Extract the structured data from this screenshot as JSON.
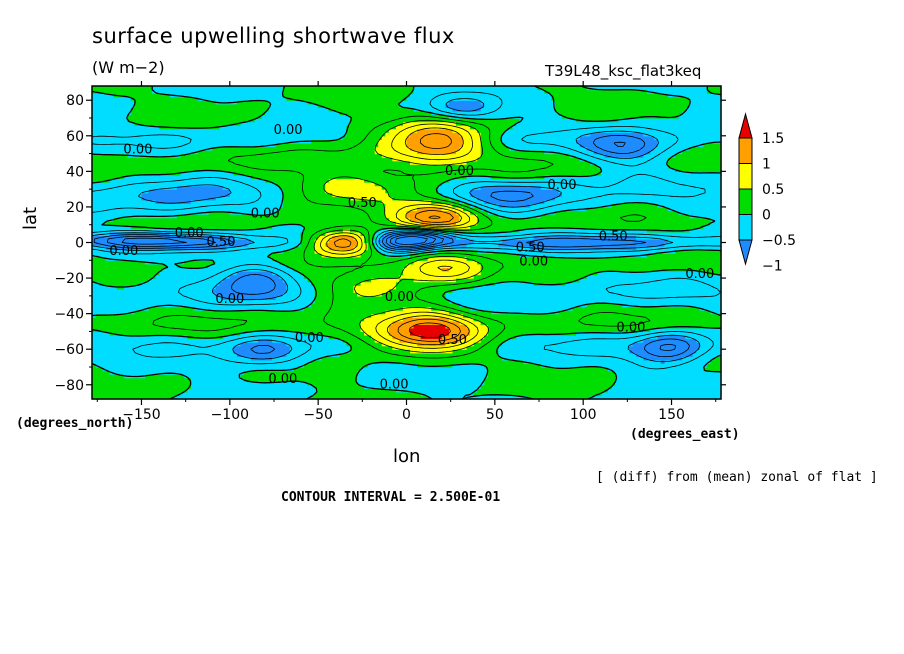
{
  "chart_data": {
    "type": "heatmap",
    "title": "surface upwelling shortwave flux",
    "units": "(W m−2)",
    "run_label": "T39L48_ksc_flat3keq",
    "xlabel": "lon",
    "ylabel": "lat",
    "x_unit_label": "(degrees_east)",
    "y_unit_label": "(degrees_north)",
    "x_ticks": [
      -150,
      -100,
      -50,
      0,
      50,
      100,
      150
    ],
    "x_tick_labels": [
      "−150",
      "−100",
      "−50",
      "0",
      "50",
      "100",
      "150"
    ],
    "y_ticks": [
      80,
      60,
      40,
      20,
      0,
      -20,
      -40,
      -60,
      -80
    ],
    "y_tick_labels": [
      "80",
      "60",
      "40",
      "20",
      "0",
      "−20",
      "−40",
      "−60",
      "−80"
    ],
    "xlim": [
      -178,
      178
    ],
    "ylim": [
      -88,
      88
    ],
    "colorbar": {
      "levels": [
        -1,
        -0.5,
        0,
        0.5,
        1,
        1.5
      ],
      "labels": [
        "−1",
        "−0.5",
        "0",
        "0.5",
        "1",
        "1.5"
      ],
      "colors": [
        "#1e8cff",
        "#00ddff",
        "#00dd00",
        "#ffff00",
        "#ffa000",
        "#e60000"
      ]
    },
    "contour_interval_text": "CONTOUR INTERVAL = 2.500E-01",
    "footnote": "[ (diff) from (mean) zonal of flat ]",
    "contour_label_text": "0.00",
    "contour_labels": [
      {
        "lon": -67,
        "lat": 63,
        "text": "0.00"
      },
      {
        "lon": -152,
        "lat": 52,
        "text": "0.00"
      },
      {
        "lon": -80,
        "lat": 16,
        "text": "0.00"
      },
      {
        "lon": -123,
        "lat": 5,
        "text": "0.00"
      },
      {
        "lon": -105,
        "lat": 0,
        "text": "0.50"
      },
      {
        "lon": -160,
        "lat": -5,
        "text": "0.00"
      },
      {
        "lon": -25,
        "lat": 22,
        "text": "0.50"
      },
      {
        "lon": -100,
        "lat": -32,
        "text": "0.00"
      },
      {
        "lon": -55,
        "lat": -54,
        "text": "0.00"
      },
      {
        "lon": -70,
        "lat": -77,
        "text": "0.00"
      },
      {
        "lon": -7,
        "lat": -80,
        "text": "0.00"
      },
      {
        "lon": -4,
        "lat": -31,
        "text": "0.00"
      },
      {
        "lon": 26,
        "lat": -55,
        "text": "0.50"
      },
      {
        "lon": 30,
        "lat": 40,
        "text": "0.00"
      },
      {
        "lon": 88,
        "lat": 32,
        "text": "0.00"
      },
      {
        "lon": 70,
        "lat": -3,
        "text": "0.50"
      },
      {
        "lon": 72,
        "lat": -11,
        "text": "0.00"
      },
      {
        "lon": 117,
        "lat": 3,
        "text": "0.50"
      },
      {
        "lon": 166,
        "lat": -18,
        "text": "0.00"
      },
      {
        "lon": 127,
        "lat": -48,
        "text": "0.00"
      }
    ],
    "anomalies": [
      {
        "lon": -35,
        "lat": 0,
        "value": 1.6,
        "slon": 14,
        "slat": 5
      },
      {
        "lon": 16,
        "lat": 15,
        "value": 1.5,
        "slon": 16,
        "slat": 6
      },
      {
        "lon": 20,
        "lat": -15,
        "value": 1.05,
        "slon": 16,
        "slat": 6
      },
      {
        "lon": 18,
        "lat": 57,
        "value": 1.2,
        "slon": 18,
        "slat": 8
      },
      {
        "lon": 15,
        "lat": -50,
        "value": 1.25,
        "slon": 18,
        "slat": 8
      },
      {
        "lon": 10,
        "lat": 3,
        "value": -1.3,
        "slon": 14,
        "slat": 4
      },
      {
        "lon": -5,
        "lat": 0,
        "value": -1.0,
        "slon": 12,
        "slat": 4
      },
      {
        "lon": -130,
        "lat": 0,
        "value": -0.85,
        "slon": 40,
        "slat": 3
      },
      {
        "lon": 100,
        "lat": 0,
        "value": -0.8,
        "slon": 70,
        "slat": 3
      },
      {
        "lon": -150,
        "lat": 2,
        "value": -0.65,
        "slon": 30,
        "slat": 3
      },
      {
        "lon": 60,
        "lat": 27,
        "value": -0.55,
        "slon": 25,
        "slat": 6
      },
      {
        "lon": 148,
        "lat": -60,
        "value": -0.9,
        "slon": 14,
        "slat": 7
      },
      {
        "lon": 125,
        "lat": 53,
        "value": -0.9,
        "slon": 16,
        "slat": 7
      },
      {
        "lon": -85,
        "lat": -20,
        "value": -0.75,
        "slon": 16,
        "slat": 8
      },
      {
        "lon": -80,
        "lat": -62,
        "value": -0.7,
        "slon": 16,
        "slat": 6
      },
      {
        "lon": 30,
        "lat": 76,
        "value": -0.55,
        "slon": 15,
        "slat": 5
      },
      {
        "lon": -135,
        "lat": 25,
        "value": -0.4,
        "slon": 30,
        "slat": 8
      },
      {
        "lon": -30,
        "lat": 30,
        "value": 0.7,
        "slon": 32,
        "slat": 7
      },
      {
        "lon": -20,
        "lat": -25,
        "value": 0.7,
        "slon": 22,
        "slat": 7
      },
      {
        "lon": -10,
        "lat": -52,
        "value": 0.5,
        "slon": 30,
        "slat": 8
      },
      {
        "lon": -10,
        "lat": 55,
        "value": 0.45,
        "slon": 30,
        "slat": 8
      }
    ]
  }
}
